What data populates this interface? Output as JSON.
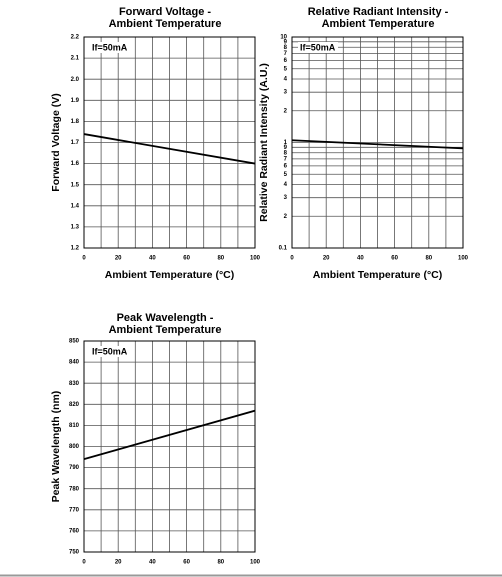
{
  "chart_data": [
    {
      "type": "line",
      "title": [
        "Forward Voltage -",
        "Ambient Temperature"
      ],
      "ylabel": "Forward Voltage (V)",
      "xlabel": "Ambient Temperature (°C)",
      "annotation": "If=50mA",
      "x": [
        0,
        100
      ],
      "values": [
        1.74,
        1.6
      ],
      "color": "#000000",
      "xlim": [
        0,
        100
      ],
      "xticks": [
        0,
        20,
        40,
        60,
        80,
        100
      ],
      "xgrid": [
        0,
        10,
        20,
        30,
        40,
        50,
        60,
        70,
        80,
        90,
        100
      ],
      "ylim": [
        1.2,
        2.2
      ],
      "yticks": [
        1.2,
        1.3,
        1.4,
        1.5,
        1.6,
        1.7,
        1.8,
        1.9,
        {
          "value": 2,
          "label": "2.0"
        },
        2.1,
        2.2
      ],
      "log": false,
      "grid": true
    },
    {
      "type": "line",
      "title": [
        "Relative Radiant Intensity -",
        "Ambient Temperature"
      ],
      "ylabel": "Relative Radiant Intensity (A.U.)",
      "xlabel": "Ambient Temperature (°C)",
      "annotation": "If=50mA",
      "x": [
        0,
        100
      ],
      "values": [
        1.05,
        0.88
      ],
      "color": "#000000",
      "xlim": [
        0,
        100
      ],
      "xticks": [
        0,
        20,
        40,
        60,
        80,
        100
      ],
      "xgrid": [
        0,
        10,
        20,
        30,
        40,
        50,
        60,
        70,
        80,
        90,
        100
      ],
      "ylim": [
        0.1,
        10
      ],
      "yticks": [
        0.1,
        {
          "value": 0.2,
          "label": "2"
        },
        {
          "value": 0.3,
          "label": "3"
        },
        {
          "value": 0.4,
          "label": "4"
        },
        {
          "value": 0.5,
          "label": "5"
        },
        {
          "value": 0.6,
          "label": "6"
        },
        {
          "value": 0.7,
          "label": "7"
        },
        {
          "value": 0.8,
          "label": "8"
        },
        {
          "value": 0.9,
          "label": "9"
        },
        1,
        2,
        3,
        4,
        5,
        6,
        7,
        8,
        9,
        10
      ],
      "log": true,
      "grid": true
    },
    {
      "type": "line",
      "title": [
        "Peak Wavelength -",
        "Ambient Temperature"
      ],
      "ylabel": "Peak Wavelength (nm)",
      "annotation": "If=50mA",
      "x": [
        0,
        100
      ],
      "values": [
        794,
        817
      ],
      "color": "#000000",
      "xlim": [
        0,
        100
      ],
      "xticks": [
        0,
        20,
        40,
        60,
        80,
        100
      ],
      "xgrid": [
        0,
        10,
        20,
        30,
        40,
        50,
        60,
        70,
        80,
        90,
        100
      ],
      "ylim": [
        750,
        850
      ],
      "yticks": [
        750,
        760,
        770,
        780,
        790,
        800,
        810,
        820,
        830,
        840,
        850
      ],
      "log": false,
      "grid": true
    }
  ]
}
